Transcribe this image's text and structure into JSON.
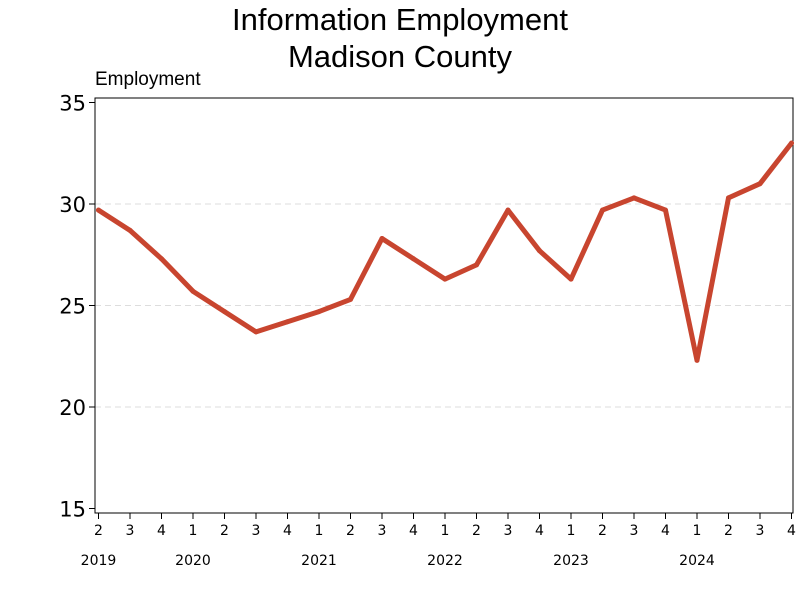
{
  "chart_data": {
    "type": "line",
    "title": [
      "Information Employment",
      "Madison County"
    ],
    "ylabel": "Employment",
    "xlabel": "",
    "ylim": [
      15,
      35
    ],
    "yticks": [
      "15",
      "20",
      "25",
      "30",
      "35"
    ],
    "grid": true,
    "x": [
      "2",
      "3",
      "4",
      "1",
      "2",
      "3",
      "4",
      "1",
      "2",
      "3",
      "4",
      "1",
      "2",
      "3",
      "4",
      "1",
      "2",
      "3",
      "4",
      "1",
      "2",
      "3",
      "4"
    ],
    "years": [
      {
        "label": "2019",
        "quarter_index": 0
      },
      {
        "label": "2020",
        "quarter_index": 3
      },
      {
        "label": "2021",
        "quarter_index": 7
      },
      {
        "label": "2022",
        "quarter_index": 11
      },
      {
        "label": "2023",
        "quarter_index": 15
      },
      {
        "label": "2024",
        "quarter_index": 19
      }
    ],
    "series": [
      {
        "color": "#c8452f",
        "values": [
          29.7,
          28.7,
          27.3,
          25.7,
          24.7,
          23.7,
          24.2,
          24.7,
          25.3,
          28.3,
          27.3,
          26.3,
          27.0,
          29.7,
          27.7,
          26.3,
          29.7,
          30.3,
          29.7,
          22.3,
          30.3,
          31.0,
          33.0
        ]
      }
    ]
  }
}
